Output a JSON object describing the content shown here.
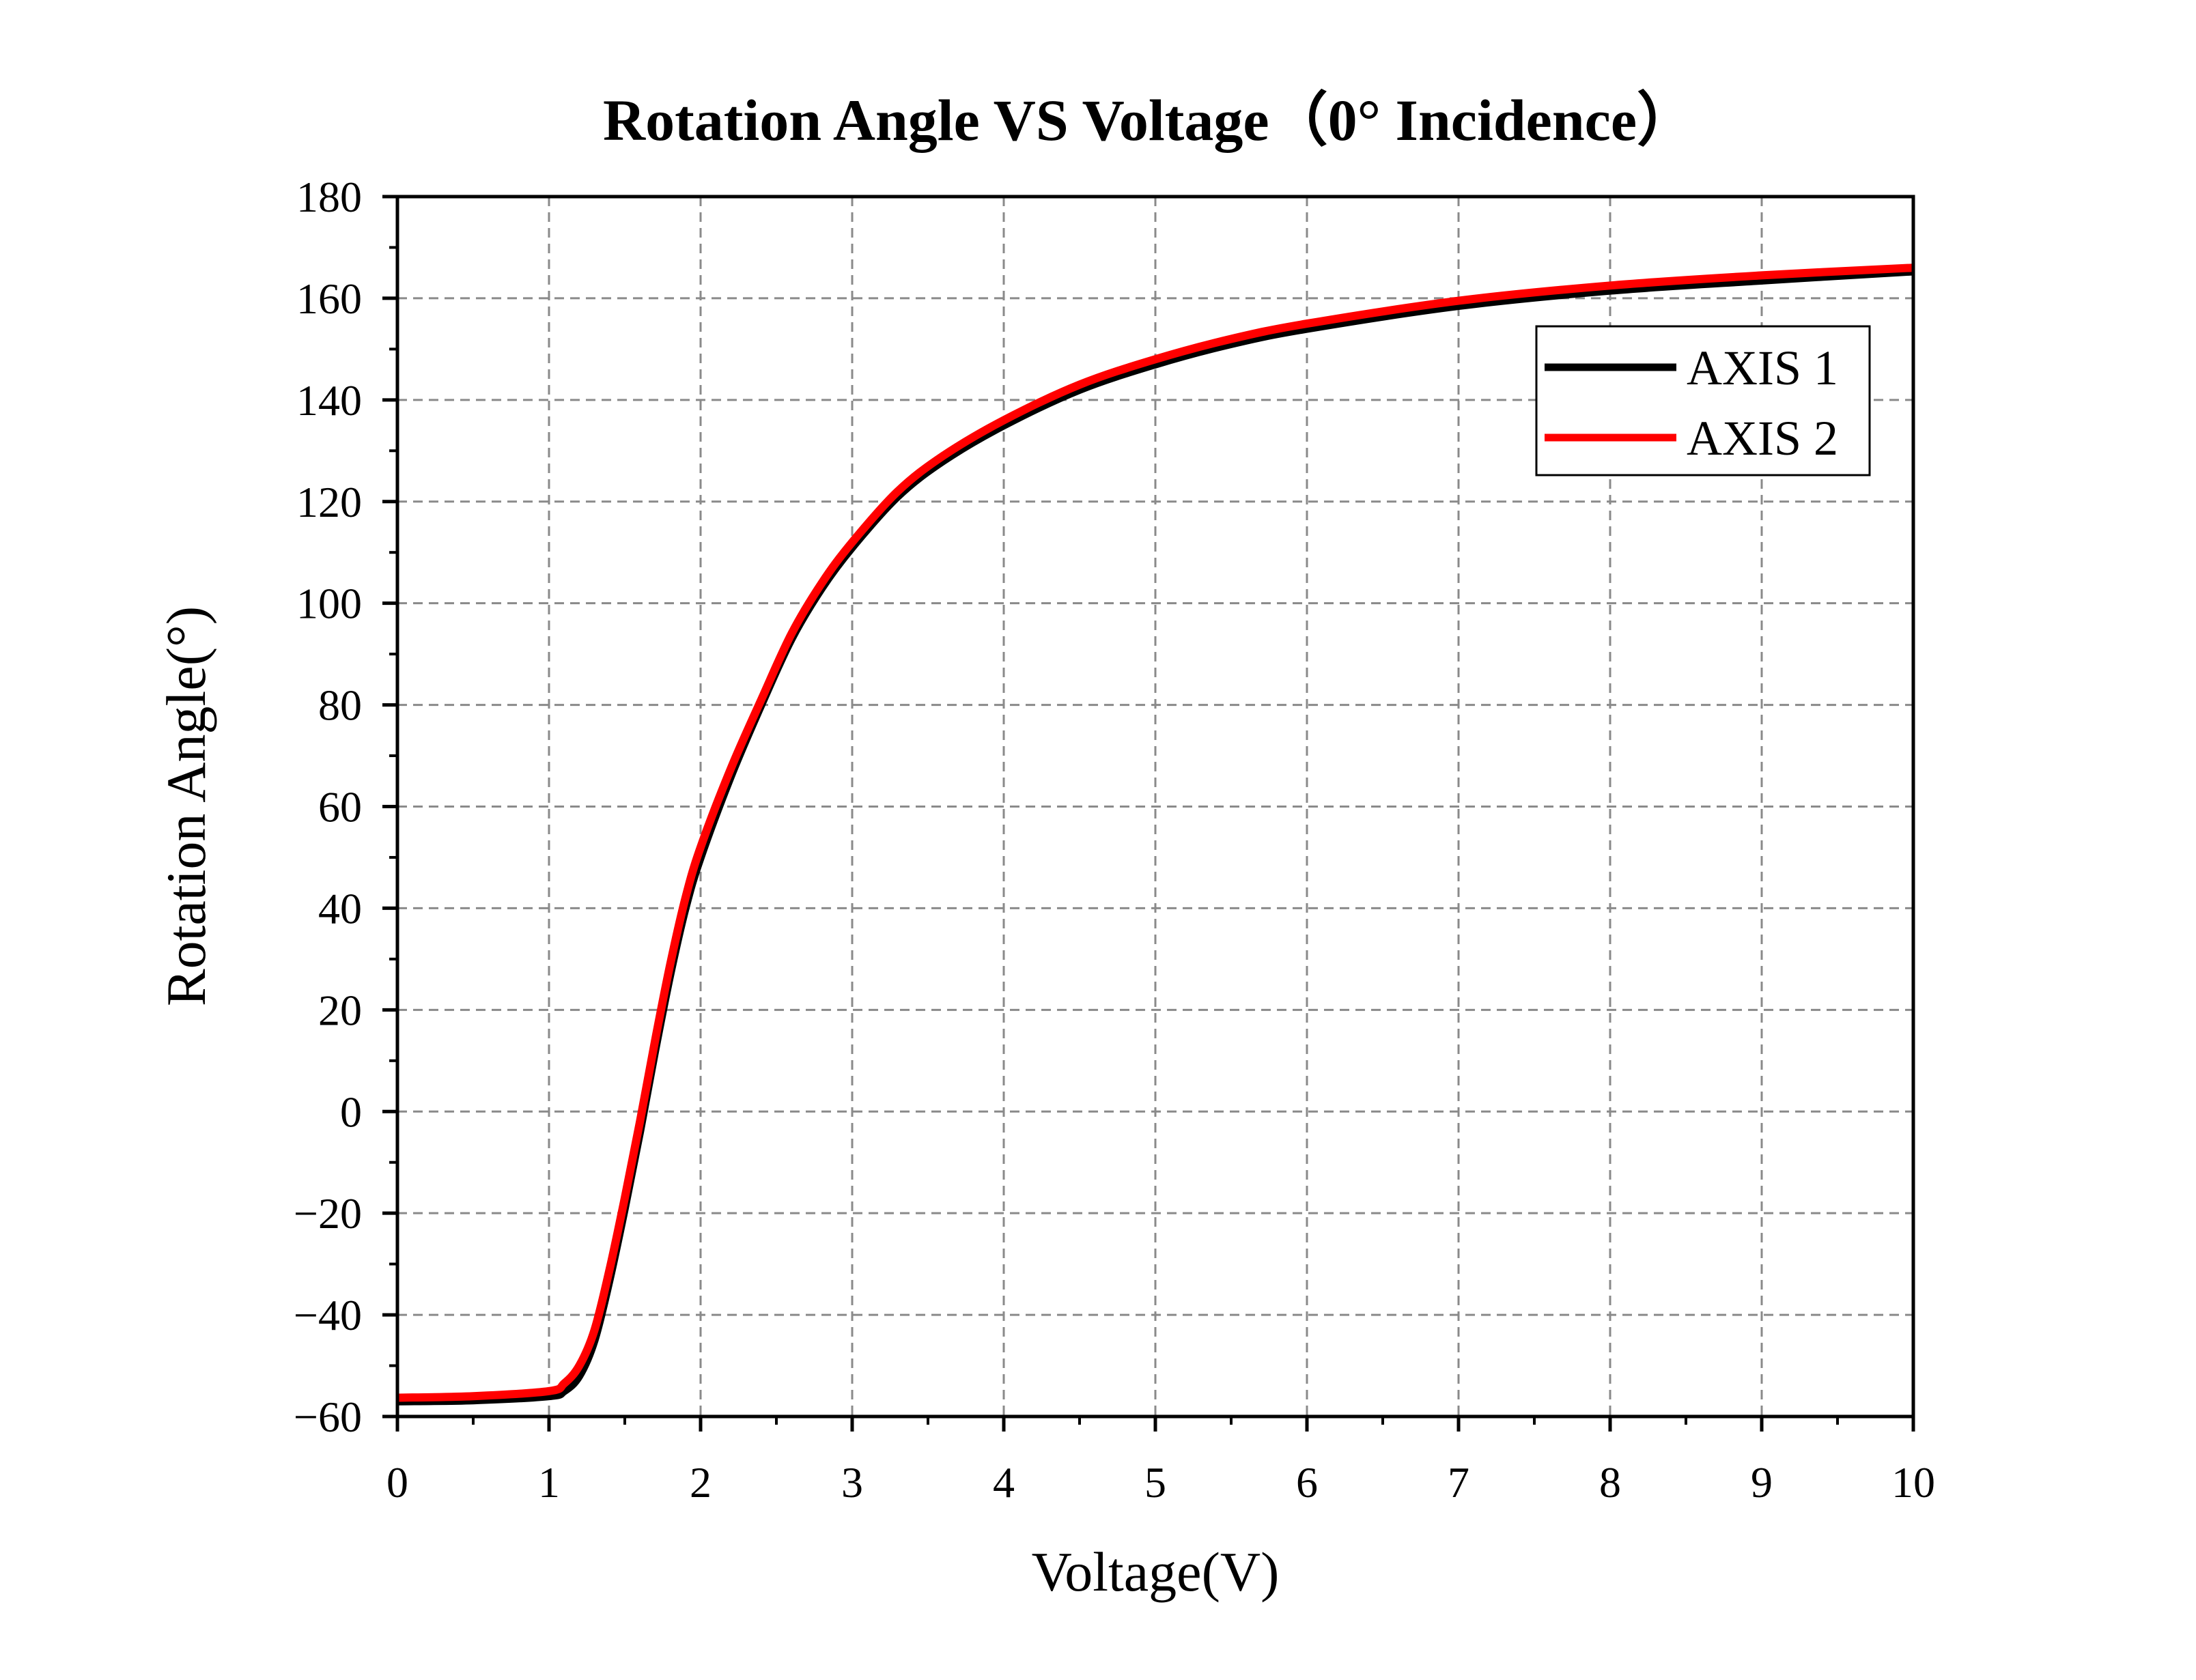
{
  "chart_data": {
    "type": "line",
    "title": "Rotation Angle  VS  Voltage（0° Incidence）",
    "xlabel": "Voltage(V)",
    "ylabel": "Rotation Angle(°)",
    "xlim": [
      0,
      10
    ],
    "ylim": [
      -60,
      180
    ],
    "xticks": [
      "0",
      "1",
      "2",
      "3",
      "4",
      "5",
      "6",
      "7",
      "8",
      "9",
      "10"
    ],
    "yticks": [
      "−60",
      "−40",
      "−20",
      "0",
      "20",
      "40",
      "60",
      "80",
      "100",
      "120",
      "140",
      "160",
      "180"
    ],
    "grid": true,
    "legend_position": "top-right",
    "series": [
      {
        "name": "AXIS 1",
        "color": "#000000",
        "x": [
          0,
          0.5,
          1.0,
          1.1,
          1.2,
          1.3,
          1.4,
          1.5,
          1.6,
          1.7,
          1.8,
          1.9,
          2.0,
          2.2,
          2.4,
          2.6,
          2.8,
          3.0,
          3.3,
          3.6,
          4.0,
          4.5,
          5.0,
          5.5,
          6.0,
          7.0,
          8.0,
          9.0,
          10.0
        ],
        "y": [
          -57,
          -56.8,
          -56,
          -55,
          -52,
          -45,
          -33,
          -19,
          -4,
          12,
          27,
          40,
          50,
          66,
          80,
          93,
          103,
          111,
          121,
          128,
          135,
          142,
          147,
          151,
          154,
          158.5,
          161.5,
          163.5,
          165.3
        ]
      },
      {
        "name": "AXIS 2",
        "color": "#ff0000",
        "x": [
          0,
          0.5,
          1.0,
          1.1,
          1.2,
          1.3,
          1.4,
          1.5,
          1.6,
          1.7,
          1.8,
          1.9,
          2.0,
          2.2,
          2.4,
          2.6,
          2.8,
          3.0,
          3.3,
          3.6,
          4.0,
          4.5,
          5.0,
          5.5,
          6.0,
          7.0,
          8.0,
          9.0,
          10.0
        ],
        "y": [
          -56.3,
          -56,
          -55,
          -53.5,
          -50,
          -43,
          -31,
          -17,
          -2,
          14,
          29,
          42,
          52,
          67.5,
          81,
          94,
          104,
          112,
          122,
          129,
          136,
          143,
          148,
          152,
          155,
          159.5,
          162.5,
          164.5,
          166
        ]
      }
    ]
  }
}
